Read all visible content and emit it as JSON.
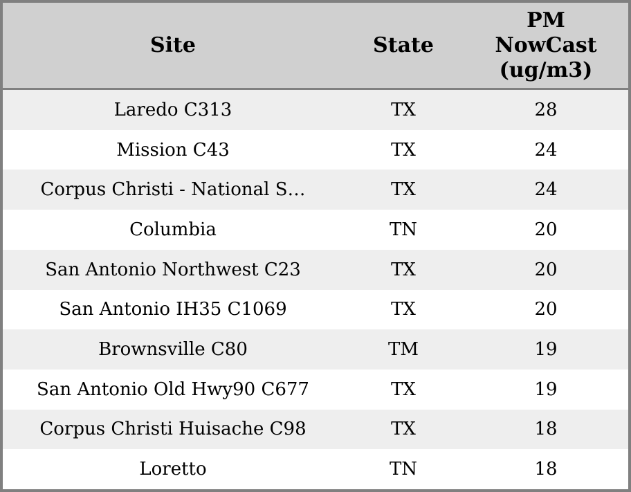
{
  "chart_data": {
    "type": "table",
    "columns": [
      "Site",
      "State",
      "PM NowCast (ug/m3)"
    ],
    "rows": [
      {
        "site": "Laredo C313",
        "state": "TX",
        "pm_nowcast": 28
      },
      {
        "site": "Mission C43",
        "state": "TX",
        "pm_nowcast": 24
      },
      {
        "site": "Corpus Christi - National S…",
        "state": "TX",
        "pm_nowcast": 24
      },
      {
        "site": "Columbia",
        "state": "TN",
        "pm_nowcast": 20
      },
      {
        "site": "San Antonio Northwest C23",
        "state": "TX",
        "pm_nowcast": 20
      },
      {
        "site": "San Antonio IH35 C1069",
        "state": "TX",
        "pm_nowcast": 20
      },
      {
        "site": "Brownsville C80",
        "state": "TM",
        "pm_nowcast": 19
      },
      {
        "site": "San Antonio Old Hwy90 C677",
        "state": "TX",
        "pm_nowcast": 19
      },
      {
        "site": "Corpus Christi Huisache C98",
        "state": "TX",
        "pm_nowcast": 18
      },
      {
        "site": "Loretto",
        "state": "TN",
        "pm_nowcast": 18
      }
    ],
    "layout": {
      "striped": true,
      "header_position": "top",
      "cell_align": "center"
    }
  },
  "table": {
    "header": {
      "site": "Site",
      "state": "State",
      "pm_lines": "PM\nNowCast\n(ug/m3)"
    }
  },
  "colors": {
    "border": "#808080",
    "header_bg": "#d0d0d0",
    "row_stripe_bg": "#eeeeee",
    "row_bg": "#ffffff",
    "text": "#000000"
  }
}
